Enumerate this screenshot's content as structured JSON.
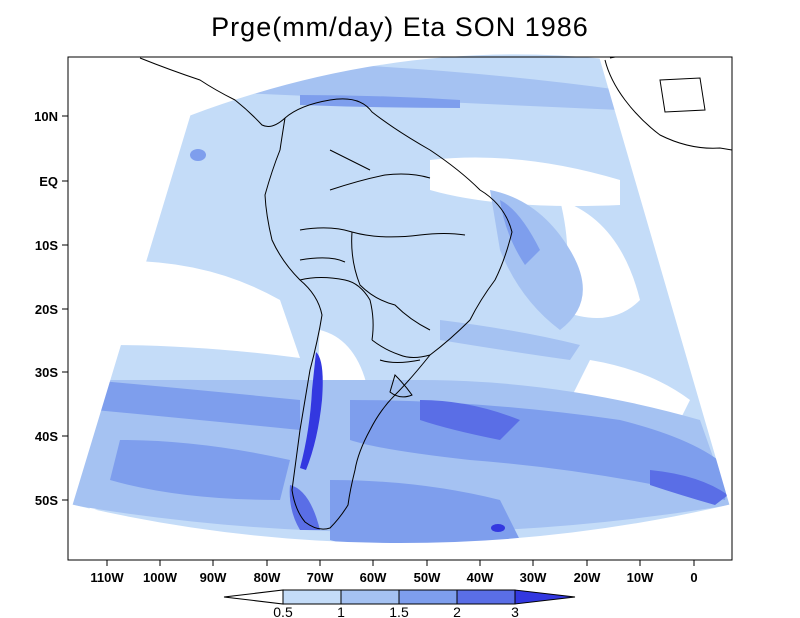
{
  "title": "Prge(mm/day) Eta SON 1986",
  "map": {
    "lat_labels": [
      "10N",
      "EQ",
      "10S",
      "20S",
      "30S",
      "40S",
      "50S"
    ],
    "lon_labels": [
      "110W",
      "100W",
      "90W",
      "80W",
      "70W",
      "60W",
      "50W",
      "40W",
      "30W",
      "20W",
      "10W",
      "0"
    ]
  },
  "colorbar": {
    "labels": [
      "0.5",
      "1",
      "1.5",
      "2",
      "3"
    ],
    "colors": [
      "#ffffff",
      "#c4dcf8",
      "#a5c2f2",
      "#7e9eed",
      "#5a6ee6",
      "#3338e0"
    ]
  },
  "colors": {
    "lvl1": "#c4dcf8",
    "lvl2": "#a5c2f2",
    "lvl3": "#7e9eed",
    "lvl4": "#5a6ee6",
    "lvl5": "#3338e0"
  }
}
